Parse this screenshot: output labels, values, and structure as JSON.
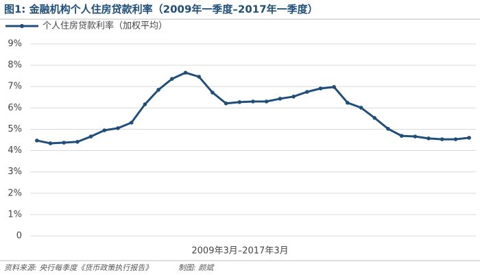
{
  "chart_data": {
    "type": "line",
    "title": "图1: 金融机构个人住房贷款利率（2009年一季度–2017年一季度）",
    "x_label": "2009年3月–2017年3月",
    "source": "资料来源: 央行每季度《货币政策执行报告》",
    "credit": "制图: 颜斌",
    "categories": [
      null,
      null,
      null,
      null,
      null,
      null,
      null,
      null,
      null,
      null,
      null,
      null,
      null,
      null,
      null,
      null,
      null,
      null,
      null,
      null,
      null,
      null,
      null,
      null,
      null,
      null,
      null,
      null,
      null,
      null,
      null,
      null,
      null
    ],
    "series": [
      {
        "name": "个人住房贷款利率（加权平均）",
        "color": "#1f4e79",
        "values": [
          4.47,
          4.34,
          4.37,
          4.41,
          4.66,
          4.95,
          5.05,
          5.31,
          6.17,
          6.85,
          7.36,
          7.65,
          7.46,
          6.72,
          6.21,
          6.27,
          6.3,
          6.3,
          6.43,
          6.53,
          6.75,
          6.91,
          6.98,
          6.24,
          6.01,
          5.53,
          5.02,
          4.69,
          4.66,
          4.57,
          4.53,
          4.53,
          4.6
        ]
      }
    ],
    "ylim": [
      0,
      9
    ],
    "yticks": [
      0,
      {
        "value": 1,
        "label": "1%"
      },
      {
        "value": 2,
        "label": "2%"
      },
      {
        "value": 3,
        "label": "3%"
      },
      {
        "value": 4,
        "label": "4%"
      },
      {
        "value": 5,
        "label": "5%"
      },
      {
        "value": 6,
        "label": "6%"
      },
      {
        "value": 7,
        "label": "7%"
      },
      {
        "value": 8,
        "label": "8%"
      },
      {
        "value": 9,
        "label": "9%"
      }
    ],
    "grid": true
  }
}
